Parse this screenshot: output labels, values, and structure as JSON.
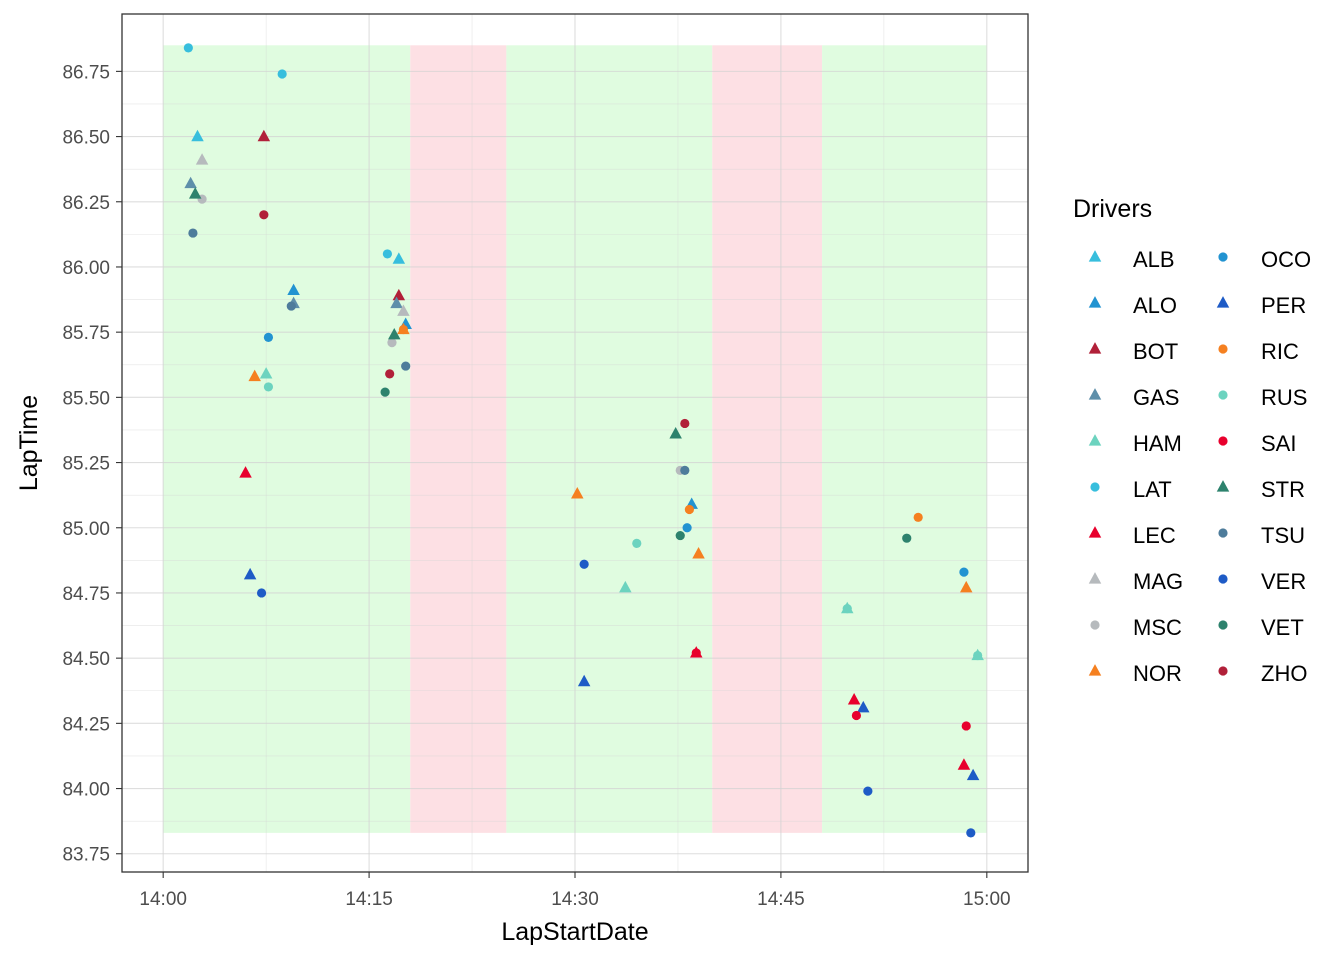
{
  "chart_data": {
    "type": "scatter",
    "xlabel": "LapStartDate",
    "ylabel": "LapTime",
    "xlim": [
      "13:57:00",
      "15:03:00"
    ],
    "ylim": [
      83.68,
      86.97
    ],
    "x_ticks": [
      "14:00",
      "14:15",
      "14:30",
      "14:45",
      "15:00"
    ],
    "y_ticks": [
      "83.75",
      "84.00",
      "84.25",
      "84.50",
      "84.75",
      "85.00",
      "85.25",
      "85.50",
      "85.75",
      "86.00",
      "86.25",
      "86.50",
      "86.75"
    ],
    "grid": true,
    "theme": "bw",
    "shaded_regions": [
      {
        "from": "14:00:00",
        "to": "14:18:00",
        "y_from": 83.83,
        "y_to": 86.85,
        "color": "#e0fce0"
      },
      {
        "from": "14:18:00",
        "to": "14:25:00",
        "y_from": 83.83,
        "y_to": 86.85,
        "color": "#fde0e4"
      },
      {
        "from": "14:25:00",
        "to": "14:40:00",
        "y_from": 83.83,
        "y_to": 86.85,
        "color": "#e0fce0"
      },
      {
        "from": "14:40:00",
        "to": "14:48:00",
        "y_from": 83.83,
        "y_to": 86.85,
        "color": "#fde0e4"
      },
      {
        "from": "14:48:00",
        "to": "15:00:00",
        "y_from": 83.83,
        "y_to": 86.85,
        "color": "#e0fce0"
      }
    ],
    "legend": {
      "title": "Drivers",
      "position": "right"
    },
    "series": [
      {
        "name": "ALB",
        "shape": "triangle",
        "color": "#37bedd",
        "points": [
          [
            "14:02:30",
            86.5
          ],
          [
            "14:17:10",
            86.03
          ]
        ]
      },
      {
        "name": "ALO",
        "shape": "triangle",
        "color": "#2293d1",
        "points": [
          [
            "14:09:30",
            85.91
          ],
          [
            "14:17:40",
            85.78
          ],
          [
            "14:38:30",
            85.09
          ]
        ]
      },
      {
        "name": "BOT",
        "shape": "triangle",
        "color": "#b12039",
        "points": [
          [
            "14:07:20",
            86.5
          ],
          [
            "14:17:10",
            85.89
          ]
        ]
      },
      {
        "name": "GAS",
        "shape": "triangle",
        "color": "#5e8faa",
        "points": [
          [
            "14:02:00",
            86.32
          ],
          [
            "14:09:30",
            85.86
          ],
          [
            "14:17:00",
            85.86
          ]
        ]
      },
      {
        "name": "HAM",
        "shape": "triangle",
        "color": "#6cd3bf",
        "points": [
          [
            "14:07:30",
            85.59
          ],
          [
            "14:33:40",
            84.77
          ],
          [
            "14:49:50",
            84.69
          ],
          [
            "14:59:20",
            84.51
          ]
        ]
      },
      {
        "name": "LAT",
        "shape": "circle",
        "color": "#37bedd",
        "points": [
          [
            "14:01:50",
            86.84
          ],
          [
            "14:08:40",
            86.74
          ],
          [
            "14:16:20",
            86.05
          ]
        ]
      },
      {
        "name": "LEC",
        "shape": "triangle",
        "color": "#e8002d",
        "points": [
          [
            "14:06:00",
            85.21
          ],
          [
            "14:38:50",
            84.52
          ],
          [
            "14:50:20",
            84.34
          ],
          [
            "14:58:20",
            84.09
          ]
        ]
      },
      {
        "name": "MAG",
        "shape": "triangle",
        "color": "#b6babd",
        "points": [
          [
            "14:02:50",
            86.41
          ],
          [
            "14:17:30",
            85.83
          ]
        ]
      },
      {
        "name": "MSC",
        "shape": "circle",
        "color": "#b6babd",
        "points": [
          [
            "14:02:50",
            86.26
          ],
          [
            "14:16:40",
            85.71
          ],
          [
            "14:37:40",
            85.22
          ]
        ]
      },
      {
        "name": "NOR",
        "shape": "triangle",
        "color": "#f58020",
        "points": [
          [
            "14:06:40",
            85.58
          ],
          [
            "14:17:30",
            85.76
          ],
          [
            "14:30:10",
            85.13
          ],
          [
            "14:39:00",
            84.9
          ],
          [
            "14:58:30",
            84.77
          ]
        ]
      },
      {
        "name": "OCO",
        "shape": "circle",
        "color": "#2293d1",
        "points": [
          [
            "14:07:40",
            85.73
          ],
          [
            "14:38:10",
            85.0
          ],
          [
            "14:58:20",
            84.83
          ]
        ]
      },
      {
        "name": "PER",
        "shape": "triangle",
        "color": "#1e5bc6",
        "points": [
          [
            "14:06:20",
            84.82
          ],
          [
            "14:30:40",
            84.41
          ],
          [
            "14:51:00",
            84.31
          ],
          [
            "14:59:00",
            84.05
          ]
        ]
      },
      {
        "name": "RIC",
        "shape": "circle",
        "color": "#f58020",
        "points": [
          [
            "14:17:30",
            85.76
          ],
          [
            "14:38:20",
            85.07
          ],
          [
            "14:55:00",
            85.04
          ]
        ]
      },
      {
        "name": "RUS",
        "shape": "circle",
        "color": "#6cd3bf",
        "points": [
          [
            "14:07:40",
            85.54
          ],
          [
            "14:34:30",
            84.94
          ],
          [
            "14:49:50",
            84.69
          ],
          [
            "14:59:20",
            84.51
          ]
        ]
      },
      {
        "name": "SAI",
        "shape": "circle",
        "color": "#e8002d",
        "points": [
          [
            "14:38:50",
            84.52
          ],
          [
            "14:50:30",
            84.28
          ],
          [
            "14:58:30",
            84.24
          ]
        ]
      },
      {
        "name": "STR",
        "shape": "triangle",
        "color": "#2d826d",
        "points": [
          [
            "14:02:20",
            86.28
          ],
          [
            "14:16:50",
            85.74
          ],
          [
            "14:37:20",
            85.36
          ]
        ]
      },
      {
        "name": "TSU",
        "shape": "circle",
        "color": "#4e7c9b",
        "points": [
          [
            "14:02:10",
            86.13
          ],
          [
            "14:09:20",
            85.85
          ],
          [
            "14:17:40",
            85.62
          ],
          [
            "14:38:00",
            85.22
          ]
        ]
      },
      {
        "name": "VER",
        "shape": "circle",
        "color": "#1e5bc6",
        "points": [
          [
            "14:07:10",
            84.75
          ],
          [
            "14:30:40",
            84.86
          ],
          [
            "14:51:20",
            83.99
          ],
          [
            "14:58:50",
            83.83
          ]
        ]
      },
      {
        "name": "VET",
        "shape": "circle",
        "color": "#2d826d",
        "points": [
          [
            "14:16:10",
            85.52
          ],
          [
            "14:37:40",
            84.97
          ],
          [
            "14:54:10",
            84.96
          ]
        ]
      },
      {
        "name": "ZHO",
        "shape": "circle",
        "color": "#b12039",
        "points": [
          [
            "14:07:20",
            86.2
          ],
          [
            "14:16:30",
            85.59
          ],
          [
            "14:38:00",
            85.4
          ]
        ]
      }
    ]
  }
}
